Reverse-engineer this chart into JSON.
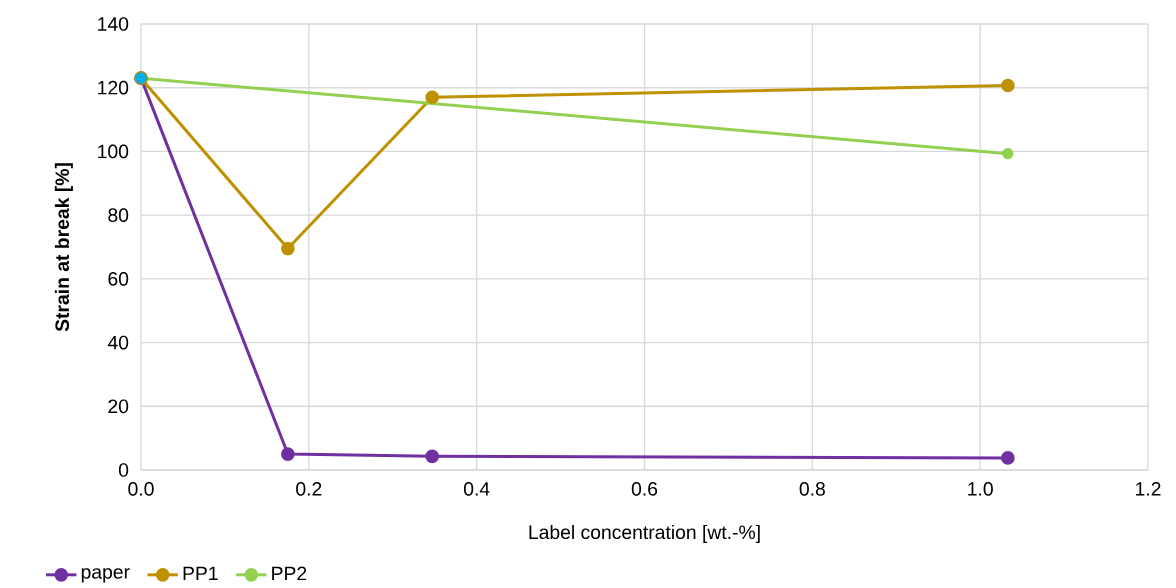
{
  "chart_data": {
    "type": "line",
    "xlabel": "Label concentration [wt.-%]",
    "ylabel": "Strain at break [%]",
    "xlim": [
      0,
      1.2
    ],
    "ylim": [
      0,
      140
    ],
    "xticks": [
      {
        "value": 0,
        "label": "0.0"
      },
      0.2,
      0.4,
      0.6,
      0.8,
      {
        "value": 1.0,
        "label": "1.0"
      },
      1.2
    ],
    "yticks": [
      0,
      20,
      40,
      60,
      80,
      100,
      120,
      140
    ],
    "grid": true,
    "legend": "bottom left",
    "marker": "circle",
    "line_style": "solid",
    "series": [
      {
        "name": "paper",
        "color": "#7030a0",
        "x": [
          0,
          0.175,
          0.347,
          1.033
        ],
        "values": [
          123,
          5,
          4.3,
          3.8
        ]
      },
      {
        "name": "PP1",
        "color": "#bf9000",
        "x": [
          0,
          0.175,
          0.347,
          1.033
        ],
        "values": [
          123,
          69.5,
          117,
          120.7
        ]
      },
      {
        "name": "PP2",
        "color": "#92d050",
        "colors": [
          "#00b0f0",
          "#92d050"
        ],
        "x": [
          0,
          1.033
        ],
        "values": [
          123,
          99.3
        ]
      }
    ]
  }
}
